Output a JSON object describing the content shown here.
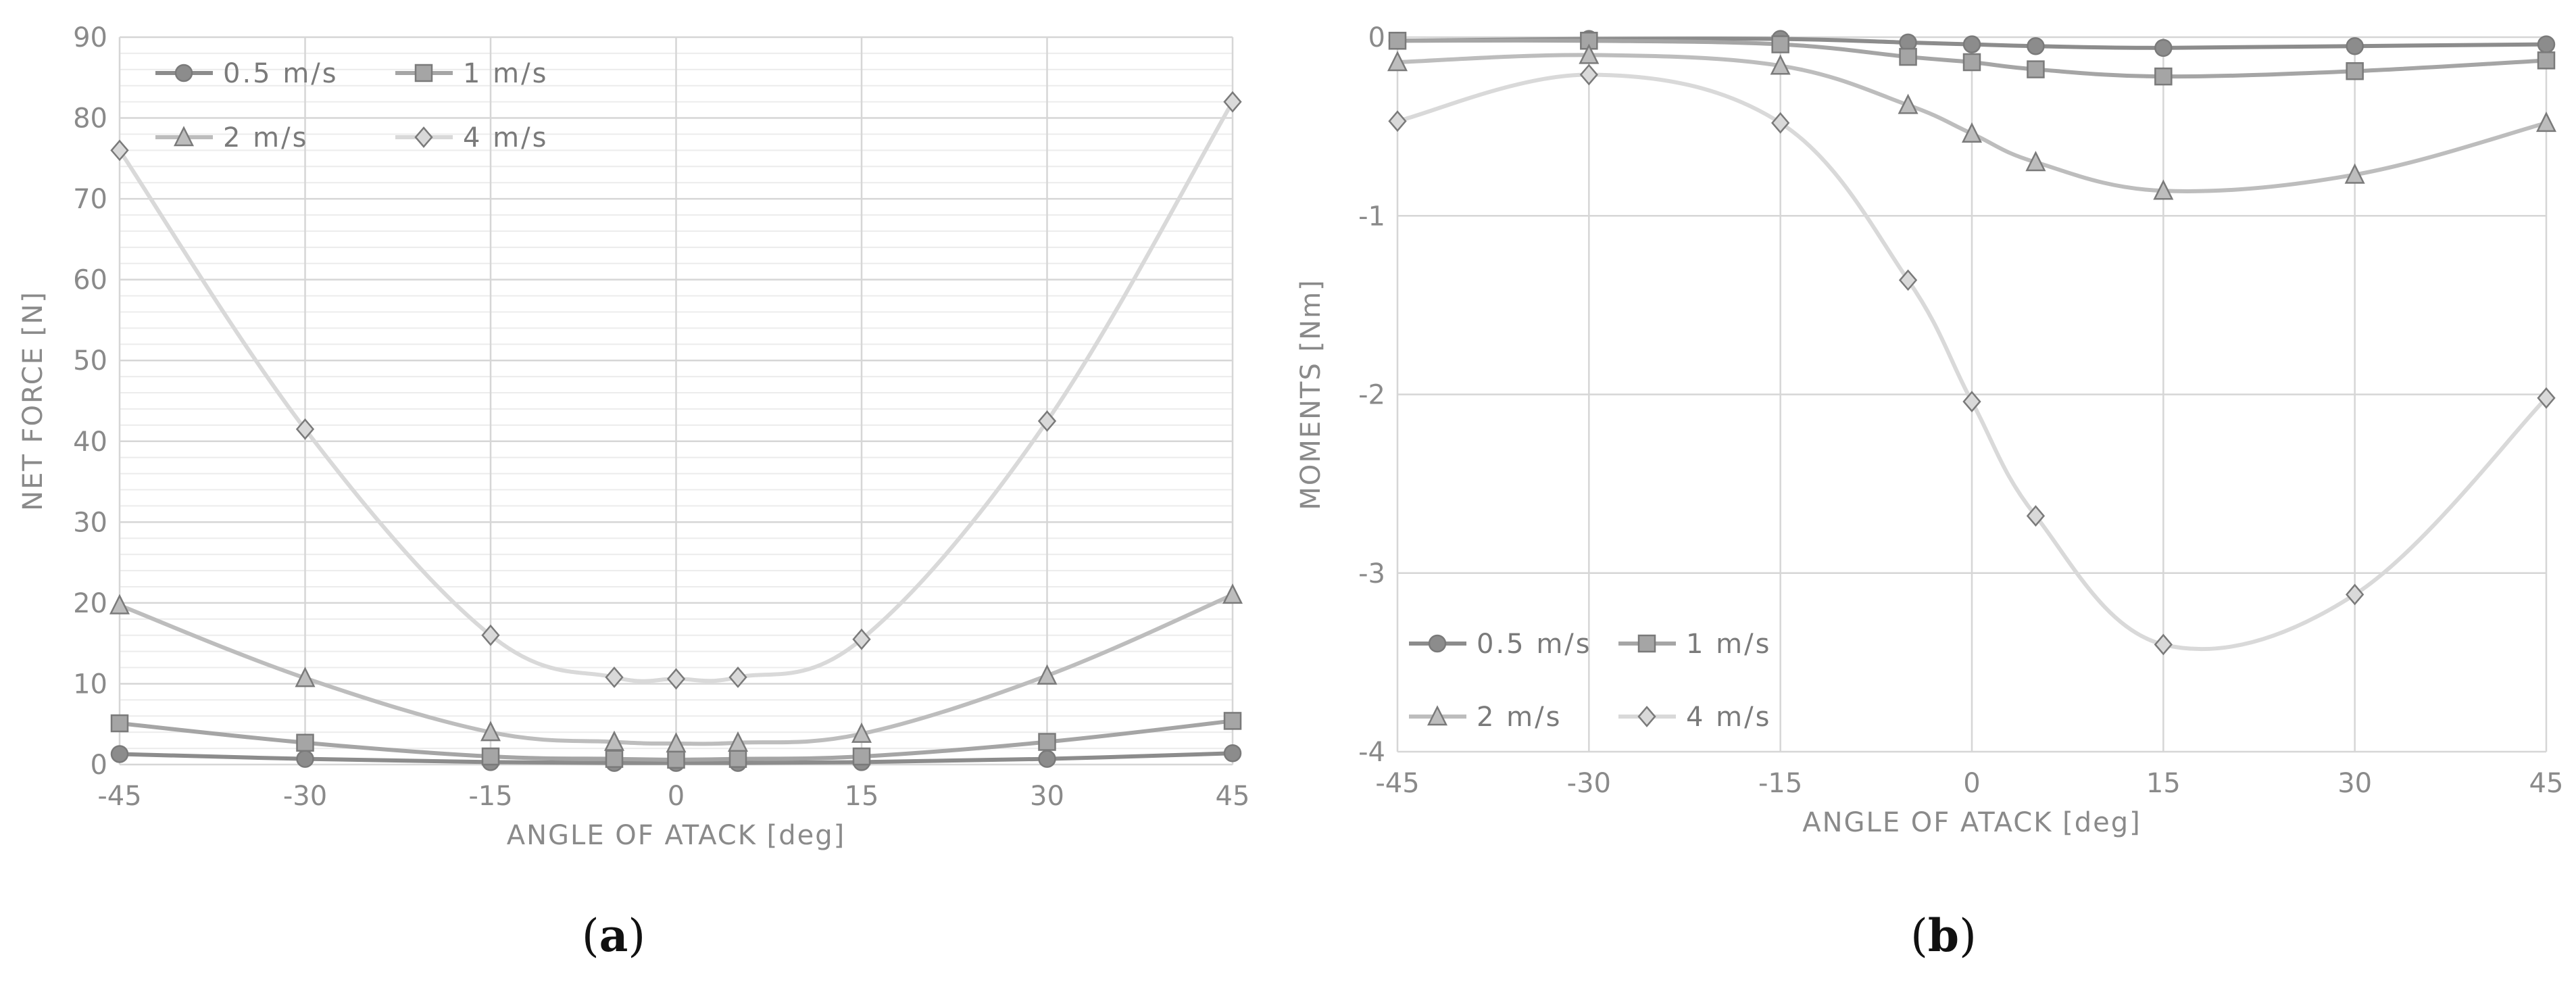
{
  "chart_data": [
    {
      "type": "line",
      "panel_label": "a",
      "xlabel": "ANGLE OF ATACK [deg]",
      "ylabel": "NET FORCE [N]",
      "xlim": [
        -45,
        45
      ],
      "ylim": [
        0,
        90
      ],
      "x_ticks": [
        -45,
        -30,
        -15,
        0,
        15,
        30,
        45
      ],
      "y_ticks": [
        0,
        10,
        20,
        30,
        40,
        50,
        60,
        70,
        80,
        90
      ],
      "grid": true,
      "minor_grid": true,
      "legend_position": "top-left",
      "x": [
        -45,
        -30,
        -15,
        -5,
        0,
        5,
        15,
        30,
        45
      ],
      "series": [
        {
          "name": "0.5 m/s",
          "marker": "circle",
          "color": "#8c8c8c",
          "values": [
            1.3,
            0.7,
            0.3,
            0.2,
            0.2,
            0.2,
            0.3,
            0.7,
            1.4
          ]
        },
        {
          "name": "1 m/s",
          "marker": "square",
          "color": "#a5a5a5",
          "values": [
            5.1,
            2.7,
            1.0,
            0.7,
            0.6,
            0.7,
            1.0,
            2.8,
            5.4
          ]
        },
        {
          "name": "2 m/s",
          "marker": "triangle",
          "color": "#bdbdbd",
          "values": [
            19.7,
            10.7,
            4.0,
            2.8,
            2.6,
            2.7,
            3.8,
            11.0,
            21.0
          ]
        },
        {
          "name": "4 m/s",
          "marker": "diamond",
          "color": "#d9d9d9",
          "values": [
            76.0,
            41.5,
            16.0,
            10.8,
            10.6,
            10.8,
            15.5,
            42.5,
            82.0
          ]
        }
      ]
    },
    {
      "type": "line",
      "panel_label": "b",
      "xlabel": "ANGLE OF ATACK [deg]",
      "ylabel": "MOMENTS [Nm]",
      "xlim": [
        -45,
        45
      ],
      "ylim": [
        -4,
        0
      ],
      "x_ticks": [
        -45,
        -30,
        -15,
        0,
        15,
        30,
        45
      ],
      "y_ticks": [
        0,
        -1,
        -2,
        -3,
        -4
      ],
      "grid": true,
      "minor_grid": false,
      "legend_position": "bottom-left",
      "x": [
        -45,
        -30,
        -15,
        -5,
        0,
        5,
        15,
        30,
        45
      ],
      "series": [
        {
          "name": "0.5 m/s",
          "marker": "circle",
          "color": "#8c8c8c",
          "values": [
            -0.02,
            -0.01,
            -0.01,
            -0.03,
            -0.04,
            -0.05,
            -0.06,
            -0.05,
            -0.04
          ]
        },
        {
          "name": "1 m/s",
          "marker": "square",
          "color": "#a5a5a5",
          "values": [
            -0.02,
            -0.02,
            -0.04,
            -0.11,
            -0.14,
            -0.18,
            -0.22,
            -0.19,
            -0.13
          ]
        },
        {
          "name": "2 m/s",
          "marker": "triangle",
          "color": "#bdbdbd",
          "values": [
            -0.14,
            -0.1,
            -0.16,
            -0.38,
            -0.54,
            -0.7,
            -0.86,
            -0.77,
            -0.48
          ]
        },
        {
          "name": "4 m/s",
          "marker": "diamond",
          "color": "#d9d9d9",
          "values": [
            -0.47,
            -0.21,
            -0.48,
            -1.36,
            -2.04,
            -2.68,
            -3.4,
            -3.12,
            -2.02
          ]
        }
      ]
    }
  ]
}
